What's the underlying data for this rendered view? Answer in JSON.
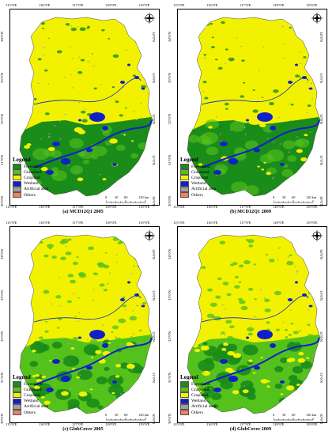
{
  "colors": {
    "forestland": "#1a8c1a",
    "grassland": "#55c21c",
    "cropland": "#f2f200",
    "wetland": "#1020c8",
    "artificial_area": "#a0a0a0",
    "others": "#f08060"
  },
  "legend": {
    "title": "Legend",
    "items": [
      {
        "label": "Forestland",
        "color": "#1a8c1a"
      },
      {
        "label": "Grassland",
        "color": "#55c21c"
      },
      {
        "label": "Cropland",
        "color": "#f2f200"
      },
      {
        "label": "Wetland",
        "color": "#1020c8"
      },
      {
        "label": "Artificial area",
        "color": "#a0a0a0"
      },
      {
        "label": "Others",
        "color": "#f08060"
      }
    ]
  },
  "ticks": {
    "longitude": [
      "115°0'E",
      "116°0'E",
      "117°0'E",
      "118°0'E",
      "119°0'E"
    ],
    "latitude": [
      "34°0'N",
      "33°0'N",
      "32°0'N",
      "31°0'N",
      "30°0'N"
    ]
  },
  "scale": {
    "labels": [
      "0",
      "30",
      "60",
      "120 km"
    ]
  },
  "compass_icon": "north-arrow-icon",
  "panels": [
    {
      "caption": "(a) MCD12Q1 2005"
    },
    {
      "caption": "(b) MCD12Q1 2009"
    },
    {
      "caption": "(c) GlobCover 2005"
    },
    {
      "caption": "(d) GlobCover 2009"
    }
  ]
}
